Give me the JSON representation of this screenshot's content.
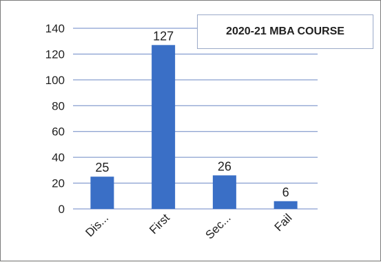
{
  "chart_data": {
    "type": "bar",
    "title": "2020-21 MBA COURSE",
    "categories": [
      "Dis...",
      "First",
      "Sec...",
      "Fail"
    ],
    "values": [
      25,
      127,
      26,
      6
    ],
    "ylim": [
      0,
      140
    ],
    "yticks": [
      0,
      20,
      40,
      60,
      80,
      100,
      120,
      140
    ],
    "grid": true,
    "legend": "none",
    "bar_color": "#3a6fc6",
    "grid_color": "#6a86c4"
  }
}
